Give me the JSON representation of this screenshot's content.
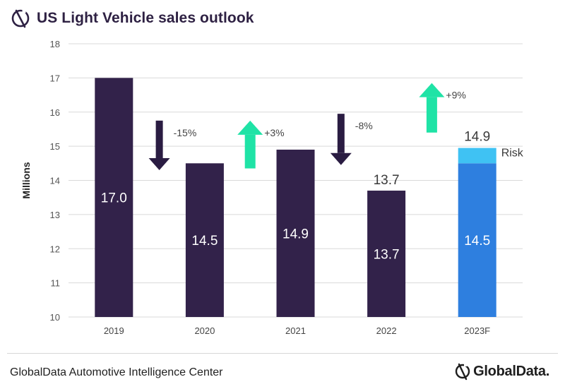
{
  "header": {
    "title": "US Light Vehicle sales outlook"
  },
  "footer": {
    "source": "GlobalData Automotive Intelligence Center",
    "brand": "GlobalData."
  },
  "chart_data": {
    "type": "bar",
    "ylabel": "Millions",
    "ylim": [
      10,
      18
    ],
    "yticks": [
      10,
      11,
      12,
      13,
      14,
      15,
      16,
      17,
      18
    ],
    "grid": true,
    "categories": [
      "2019",
      "2020",
      "2021",
      "2022",
      "2023F"
    ],
    "values": [
      17.0,
      14.5,
      14.9,
      13.7,
      14.5
    ],
    "value_labels": [
      "17.0",
      "14.5",
      "14.9",
      "13.7",
      "14.5"
    ],
    "top_labels": [
      "",
      "",
      "",
      "13.7",
      "14.9"
    ],
    "risk": {
      "category": "2023F",
      "base": 14.5,
      "top": 14.95,
      "label": "Risk"
    },
    "changes": [
      {
        "between": [
          "2019",
          "2020"
        ],
        "label": "-15%",
        "direction": "down"
      },
      {
        "between": [
          "2020",
          "2021"
        ],
        "label": "+3%",
        "direction": "up"
      },
      {
        "between": [
          "2021",
          "2022"
        ],
        "label": "-8%",
        "direction": "down"
      },
      {
        "between": [
          "2022",
          "2023F"
        ],
        "label": "+9%",
        "direction": "up"
      }
    ],
    "colors": {
      "actual": "#32224a",
      "forecast": "#2e7fdf",
      "risk": "#3fc2f3",
      "up": "#1fe3a6",
      "down": "#2a1c42",
      "grid": "#d9d9d9"
    }
  }
}
